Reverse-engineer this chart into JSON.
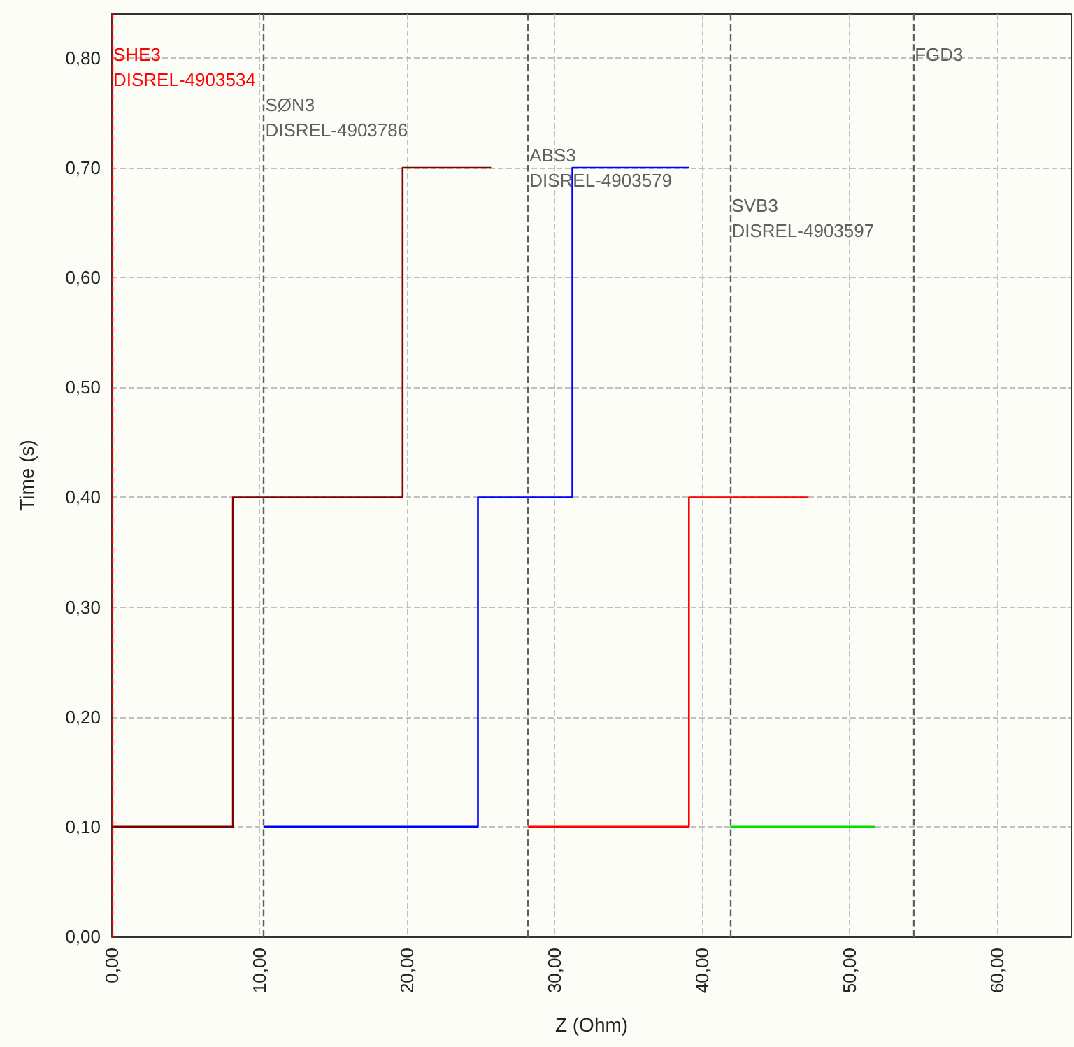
{
  "chart_data": {
    "type": "step",
    "xlabel": "Z (Ohm)",
    "ylabel": "Time (s)",
    "xlim": [
      0,
      65
    ],
    "xticks": [
      {
        "value": 0,
        "label": "0,00"
      },
      {
        "value": 10,
        "label": "10,00"
      },
      {
        "value": 20,
        "label": "20,00"
      },
      {
        "value": 30,
        "label": "30,00"
      },
      {
        "value": 40,
        "label": "40,00"
      },
      {
        "value": 50,
        "label": "50,00"
      },
      {
        "value": 60,
        "label": "60,00"
      }
    ],
    "ylim": [
      0,
      0.84
    ],
    "yticks": [
      {
        "value": 0,
        "label": "0,00"
      },
      {
        "value": 0.1,
        "label": "0,10"
      },
      {
        "value": 0.2,
        "label": "0,20"
      },
      {
        "value": 0.3,
        "label": "0,30"
      },
      {
        "value": 0.4,
        "label": "0,40"
      },
      {
        "value": 0.5,
        "label": "0,50"
      },
      {
        "value": 0.6,
        "label": "0,60"
      },
      {
        "value": 0.7,
        "label": "0,70"
      },
      {
        "value": 0.8,
        "label": "0,80"
      }
    ],
    "grid": true,
    "line_style": "solid",
    "marker": "none",
    "series": [
      {
        "color": "#800000",
        "x": [
          0,
          8.2,
          19.7,
          25.7
        ],
        "values": [
          0.1,
          0.4,
          0.7,
          0.7
        ]
      },
      {
        "color": "#0000ff",
        "x": [
          10.3,
          24.8,
          31.2,
          39.1
        ],
        "values": [
          0.1,
          0.4,
          0.7,
          0.7
        ]
      },
      {
        "color": "#ff0000",
        "x": [
          28.2,
          39.1,
          47.2
        ],
        "values": [
          0.1,
          0.4,
          0.4
        ]
      },
      {
        "color": "#00e000",
        "x": [
          41.9,
          51.7
        ],
        "values": [
          0.1,
          0.1
        ]
      }
    ],
    "ref_lines": [
      {
        "axis": "x",
        "value": 0,
        "label": "SHE3\nDISREL-4903534",
        "color": "#ff0000",
        "line_style": "dashed"
      },
      {
        "axis": "x",
        "value": 10.3,
        "label": "SØN3\nDISREL-4903786",
        "color": "#606060",
        "line_style": "dashed"
      },
      {
        "axis": "x",
        "value": 28.2,
        "label": "ABS3\nDISREL-4903579",
        "color": "#606060",
        "line_style": "dashed"
      },
      {
        "axis": "x",
        "value": 41.9,
        "label": "SVB3\nDISREL-4903597",
        "color": "#606060",
        "line_style": "dashed"
      },
      {
        "axis": "x",
        "value": 54.3,
        "label": "FGD3",
        "color": "#606060",
        "line_style": "dashed"
      }
    ]
  }
}
